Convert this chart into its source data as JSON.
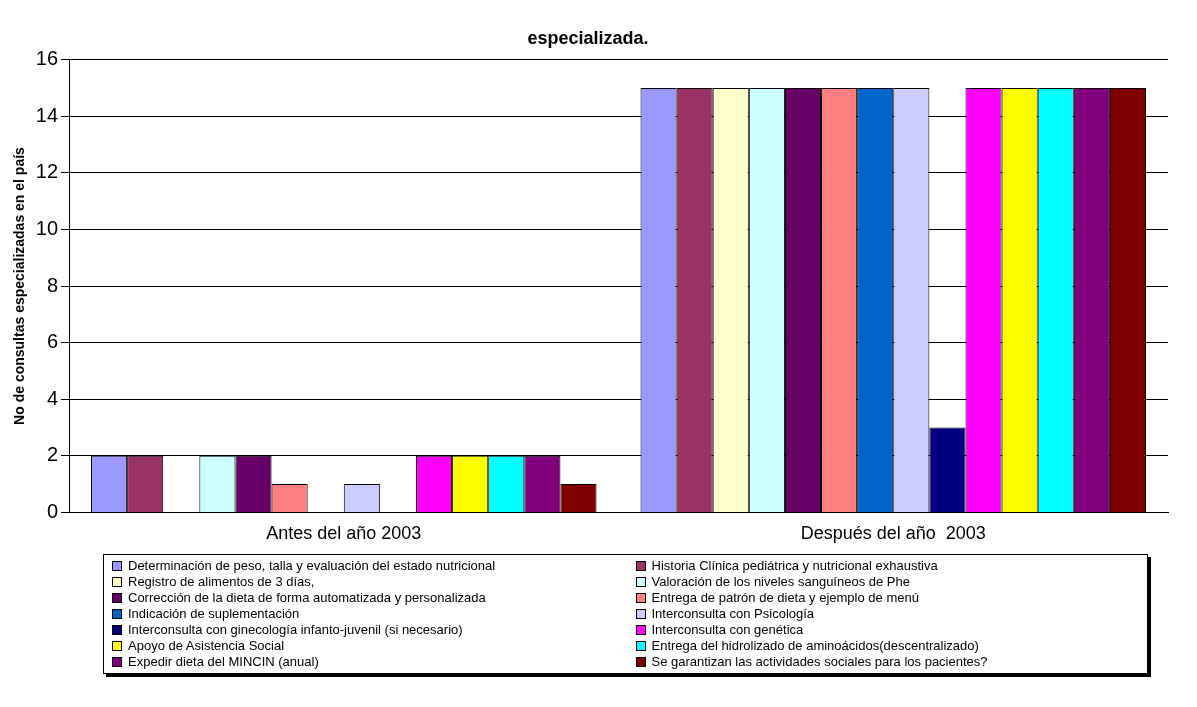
{
  "chart_data": {
    "type": "bar",
    "title": "especializada.",
    "ylabel": "No de consultas especializadas en el país",
    "categories": [
      "Antes del año 2003",
      "Después del año  2003"
    ],
    "ylim": [
      0,
      16
    ],
    "yticks": [
      0,
      2,
      4,
      6,
      8,
      10,
      12,
      14,
      16
    ],
    "grid": "y",
    "legend": "bottom",
    "series": [
      {
        "name": "Determinación de peso, talla y evaluación del estado nutricional",
        "color": "#9999ff",
        "values": [
          2,
          15
        ]
      },
      {
        "name": "Historia Clínica pediátrica y nutricional exhaustiva",
        "color": "#993366",
        "values": [
          2,
          15
        ]
      },
      {
        "name": "Registro de alimentos de 3 días,",
        "color": "#ffffcc",
        "values": [
          0,
          15
        ]
      },
      {
        "name": "Valoración de los niveles sanguíneos de Phe",
        "color": "#ccffff",
        "values": [
          2,
          15
        ]
      },
      {
        "name": "Corrección de la dieta de forma automatizada y personalizada",
        "color": "#660066",
        "values": [
          2,
          15
        ]
      },
      {
        "name": "Entrega de patrón de dieta y ejemplo de menú",
        "color": "#ff8080",
        "values": [
          1,
          15
        ]
      },
      {
        "name": "Indicación de suplementación",
        "color": "#0066cc",
        "values": [
          0,
          15
        ]
      },
      {
        "name": "Interconsulta con Psicología",
        "color": "#ccccff",
        "values": [
          1,
          15
        ]
      },
      {
        "name": "Interconsulta con ginecología infanto-juvenil (si necesario)",
        "color": "#000080",
        "values": [
          0,
          3
        ]
      },
      {
        "name": "Interconsulta con genética",
        "color": "#ff00ff",
        "values": [
          2,
          15
        ]
      },
      {
        "name": "Apoyo de Asistencia Social",
        "color": "#ffff00",
        "values": [
          2,
          15
        ]
      },
      {
        "name": "Entrega del hidrolizado de aminoácidos(descentralizado)",
        "color": "#00ffff",
        "values": [
          2,
          15
        ]
      },
      {
        "name": "Expedir dieta del MINCIN (anual)",
        "color": "#800080",
        "values": [
          2,
          15
        ]
      },
      {
        "name": "Se garantizan las actividades sociales para los pacientes?",
        "color": "#800000",
        "values": [
          1,
          15
        ]
      }
    ]
  }
}
